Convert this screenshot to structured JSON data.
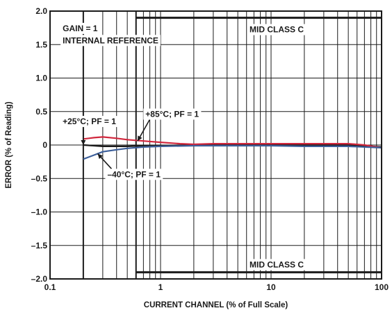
{
  "chart_data": {
    "type": "line",
    "xlabel": "CURRENT CHANNEL (% of Full Scale)",
    "ylabel": "ERROR (% of Reading)",
    "x_scale": "log",
    "xlim": [
      0.1,
      100
    ],
    "ylim": [
      -2.0,
      2.0
    ],
    "grid": true,
    "x_ticks": [
      {
        "value": 0.1,
        "label": "0.1"
      },
      {
        "value": 1,
        "label": "1"
      },
      {
        "value": 10,
        "label": "10"
      },
      {
        "value": 100,
        "label": "100"
      }
    ],
    "y_ticks": [
      {
        "value": 2.0,
        "label": "2.0"
      },
      {
        "value": 1.5,
        "label": "1.5"
      },
      {
        "value": 1.0,
        "label": "1.0"
      },
      {
        "value": 0.5,
        "label": "0.5"
      },
      {
        "value": 0,
        "label": "0"
      },
      {
        "value": -0.5,
        "label": "–0.5"
      },
      {
        "value": -1.0,
        "label": "–1.0"
      },
      {
        "value": -1.5,
        "label": "–1.5"
      },
      {
        "value": -2.0,
        "label": "–2.0"
      }
    ],
    "series": [
      {
        "name": "+25°C; PF = 1",
        "color": "#1a1a1a",
        "x": [
          0.2,
          0.25,
          0.3,
          0.4,
          0.5,
          0.7,
          1,
          2,
          5,
          10,
          20,
          50,
          100
        ],
        "y": [
          0.0,
          -0.01,
          -0.02,
          -0.02,
          -0.02,
          -0.01,
          -0.01,
          0.0,
          0.0,
          0.0,
          0.0,
          0.0,
          -0.03
        ]
      },
      {
        "name": "+85°C; PF = 1",
        "color": "#d1273d",
        "x": [
          0.2,
          0.25,
          0.3,
          0.4,
          0.5,
          0.7,
          1,
          1.5,
          2,
          3,
          5,
          10,
          20,
          50,
          70,
          100
        ],
        "y": [
          0.09,
          0.11,
          0.12,
          0.1,
          0.08,
          0.06,
          0.04,
          0.02,
          0.01,
          0.02,
          0.02,
          0.02,
          0.02,
          0.02,
          0.0,
          -0.04
        ]
      },
      {
        "name": "–40°C; PF = 1",
        "color": "#3c5f9a",
        "x": [
          0.2,
          0.25,
          0.3,
          0.4,
          0.5,
          0.7,
          1,
          2,
          5,
          10,
          20,
          50,
          100
        ],
        "y": [
          -0.21,
          -0.15,
          -0.1,
          -0.07,
          -0.05,
          -0.03,
          -0.02,
          -0.01,
          -0.01,
          -0.01,
          -0.02,
          -0.02,
          -0.04
        ]
      }
    ],
    "limit_lines": [
      {
        "label": "MID CLASS C",
        "x_from": 0.6,
        "x_to": 100,
        "y": 1.9
      },
      {
        "label": "MID CLASS C",
        "x_from": 0.6,
        "x_to": 100,
        "y": -1.9
      }
    ],
    "limit_verticals": [
      0.2,
      0.6
    ],
    "annotations": [
      {
        "text": "GAIN = 1",
        "x": 0.13,
        "y": 1.7
      },
      {
        "text": "INTERNAL REFERENCE",
        "x": 0.13,
        "y": 1.52
      },
      {
        "text": "+25°C; PF = 1",
        "x": 0.13,
        "y": 0.31,
        "arrow_to": [
          0.2,
          0.0
        ]
      },
      {
        "text": "+85°C; PF = 1",
        "x": 0.73,
        "y": 0.42,
        "arrow_to": [
          0.62,
          0.06
        ]
      },
      {
        "text": "–40°C; PF = 1",
        "x": 0.33,
        "y": -0.48,
        "arrow_to": [
          0.27,
          -0.13
        ]
      }
    ]
  }
}
